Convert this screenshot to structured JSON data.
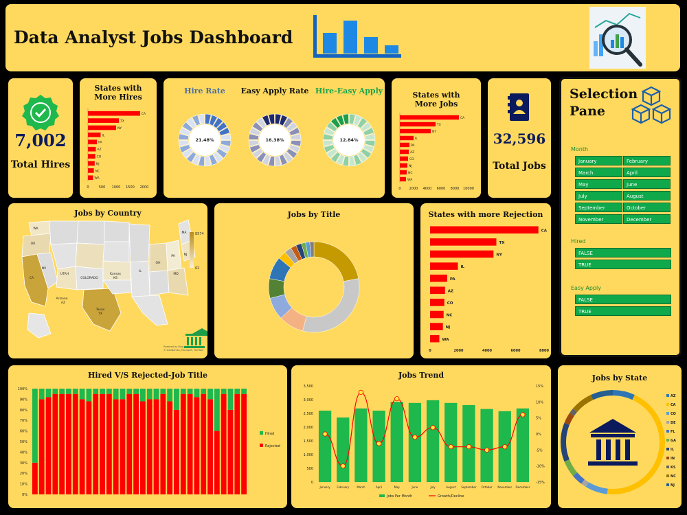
{
  "header": {
    "title": "Data Analyst Jobs Dashboard"
  },
  "kpis": {
    "hires_value": "7,002",
    "hires_label": "Total Hires",
    "jobs_value": "32,596",
    "jobs_label": "Total Jobs"
  },
  "selection": {
    "title_line1": "Selection",
    "title_line2": "Pane",
    "month_label": "Month",
    "months": [
      "January",
      "February",
      "March",
      "April",
      "May",
      "June",
      "July",
      "August",
      "September",
      "October",
      "November",
      "December"
    ],
    "hired_label": "Hired",
    "hired_options": [
      "FALSE",
      "TRUE"
    ],
    "easy_label": "Easy Apply",
    "easy_options": [
      "FALSE",
      "TRUE"
    ]
  },
  "map": {
    "labels": [
      "WA",
      "OR",
      "CA",
      "NV",
      "UTAH",
      "COLORADO",
      "Kansas",
      "KS",
      "Arizona",
      "AZ",
      "Texas",
      "TX",
      "IL",
      "OH",
      "PA",
      "NJ",
      "MD",
      "MA"
    ],
    "legend_max": "8574",
    "legend_min": "62",
    "credit_line1": "Powered by Bing",
    "credit_line2": "© GeoNames, Microsoft, TomTom"
  },
  "colors": {
    "panel": "#ffd95e",
    "red": "#ff0000",
    "green": "#1fb84c",
    "navy": "#0b1a5c"
  },
  "chart_data": [
    {
      "id": "hires_by_state",
      "type": "bar",
      "title": "States with More Hires",
      "categories": [
        "CA",
        "TX",
        "NY",
        "IL",
        "PA",
        "AZ",
        "CO",
        "NJ",
        "NC",
        "WA"
      ],
      "values": [
        1850,
        1100,
        1000,
        450,
        320,
        280,
        260,
        240,
        210,
        180
      ],
      "xlim": [
        0,
        2000
      ],
      "xticks": [
        "0",
        "500",
        "1000",
        "1500",
        "2000"
      ]
    },
    {
      "id": "hire_rate",
      "type": "pie",
      "title": "Hire Rate",
      "value": 21.48,
      "label": "21.48%"
    },
    {
      "id": "easy_apply_rate",
      "type": "pie",
      "title": "Easy Apply Rate",
      "value": 16.38,
      "label": "16.38%"
    },
    {
      "id": "hire_easy_apply",
      "type": "pie",
      "title": "Hire-Easy Apply",
      "value": 12.84,
      "label": "12.84%"
    },
    {
      "id": "jobs_by_state",
      "type": "bar",
      "title": "States with More Jobs",
      "categories": [
        "CA",
        "TX",
        "NY",
        "IL",
        "PA",
        "AZ",
        "CO",
        "NJ",
        "NC",
        "WA"
      ],
      "values": [
        8600,
        5200,
        4500,
        2000,
        1400,
        1300,
        1200,
        1100,
        1000,
        900
      ],
      "xlim": [
        0,
        10000
      ],
      "xticks": [
        "0",
        "2000",
        "4000",
        "6000",
        "8000",
        "10000"
      ]
    },
    {
      "id": "jobs_by_title",
      "type": "pie",
      "title": "Jobs by Title",
      "values": [
        22,
        32,
        9,
        8,
        7,
        8,
        3,
        2.5,
        2,
        2,
        1.5,
        1.5,
        1.5
      ],
      "colors": [
        "#c49a00",
        "#c8c8c8",
        "#f4b183",
        "#8faadc",
        "#548235",
        "#2e75b6",
        "#ffc000",
        "#a5a5a5",
        "#c55a11",
        "#264478",
        "#70ad47",
        "#5b9bd5",
        "#7f7f7f"
      ]
    },
    {
      "id": "rejections_by_state",
      "type": "bar",
      "title": "States with more Rejection",
      "categories": [
        "CA",
        "TX",
        "NY",
        "IL",
        "PA",
        "AZ",
        "CO",
        "NC",
        "NJ",
        "WA"
      ],
      "values": [
        7600,
        4650,
        4450,
        1950,
        1200,
        1050,
        1000,
        950,
        900,
        650
      ],
      "xlim": [
        0,
        8000
      ],
      "xticks": [
        "0",
        "2000",
        "4000",
        "6000",
        "8000"
      ]
    },
    {
      "id": "hired_vs_rejected",
      "type": "bar",
      "title": "Hired V/S Rejected-Job Title",
      "stacked": true,
      "yticks": [
        "0%",
        "10%",
        "20%",
        "30%",
        "40%",
        "50%",
        "60%",
        "70%",
        "80%",
        "90%",
        "100%"
      ],
      "series": [
        {
          "name": "Hired",
          "color": "#1fb84c",
          "values": [
            70,
            10,
            8,
            5,
            5,
            5,
            5,
            10,
            12,
            5,
            5,
            5,
            10,
            10,
            5,
            5,
            12,
            10,
            10,
            5,
            12,
            20,
            5,
            5,
            8,
            5,
            10,
            40,
            5,
            20,
            5,
            5
          ]
        },
        {
          "name": "Rejected",
          "color": "#ff0000",
          "values": [
            30,
            90,
            92,
            95,
            95,
            95,
            95,
            90,
            88,
            95,
            95,
            95,
            90,
            90,
            95,
            95,
            88,
            90,
            90,
            95,
            88,
            80,
            95,
            95,
            92,
            95,
            90,
            60,
            95,
            80,
            95,
            95
          ]
        }
      ]
    },
    {
      "id": "jobs_trend",
      "type": "bar",
      "title": "Jobs Trend",
      "categories": [
        "January",
        "February",
        "March",
        "April",
        "May",
        "June",
        "July",
        "August",
        "September",
        "October",
        "November",
        "December"
      ],
      "series": [
        {
          "name": "Jobs Per Month",
          "type": "bar",
          "color": "#1fb84c",
          "values": [
            2600,
            2350,
            2680,
            2600,
            2920,
            2880,
            2980,
            2880,
            2800,
            2660,
            2580,
            2680
          ]
        },
        {
          "name": "Growth/Decline",
          "type": "line",
          "color": "#ff0000",
          "values": [
            0,
            -10,
            13,
            -3,
            11,
            -1,
            2,
            -4,
            -4,
            -5,
            -4,
            6
          ]
        }
      ],
      "ylim": [
        0,
        3500
      ],
      "yticks": [
        "0",
        "500",
        "1,000",
        "1,500",
        "2,000",
        "2,500",
        "3,000",
        "3,500"
      ],
      "y2lim": [
        -15,
        15
      ],
      "y2ticks": [
        "-15%",
        "-10%",
        "-5%",
        "0%",
        "5%",
        "10%",
        "15%"
      ]
    },
    {
      "id": "jobs_by_state_ring",
      "type": "pie",
      "title": "Jobs by State",
      "categories": [
        "AZ",
        "CA",
        "CO",
        "DE",
        "FL",
        "GA",
        "IL",
        "IN",
        "KS",
        "NC",
        "NJ"
      ],
      "values": [
        4,
        26,
        4,
        1,
        2,
        3,
        7,
        2,
        1,
        4,
        4
      ],
      "colors": [
        "#2e75b6",
        "#ffc000",
        "#5b9bd5",
        "#a5a5a5",
        "#4472c4",
        "#70ad47",
        "#264478",
        "#9e480e",
        "#636363",
        "#997300",
        "#255e91"
      ]
    }
  ]
}
